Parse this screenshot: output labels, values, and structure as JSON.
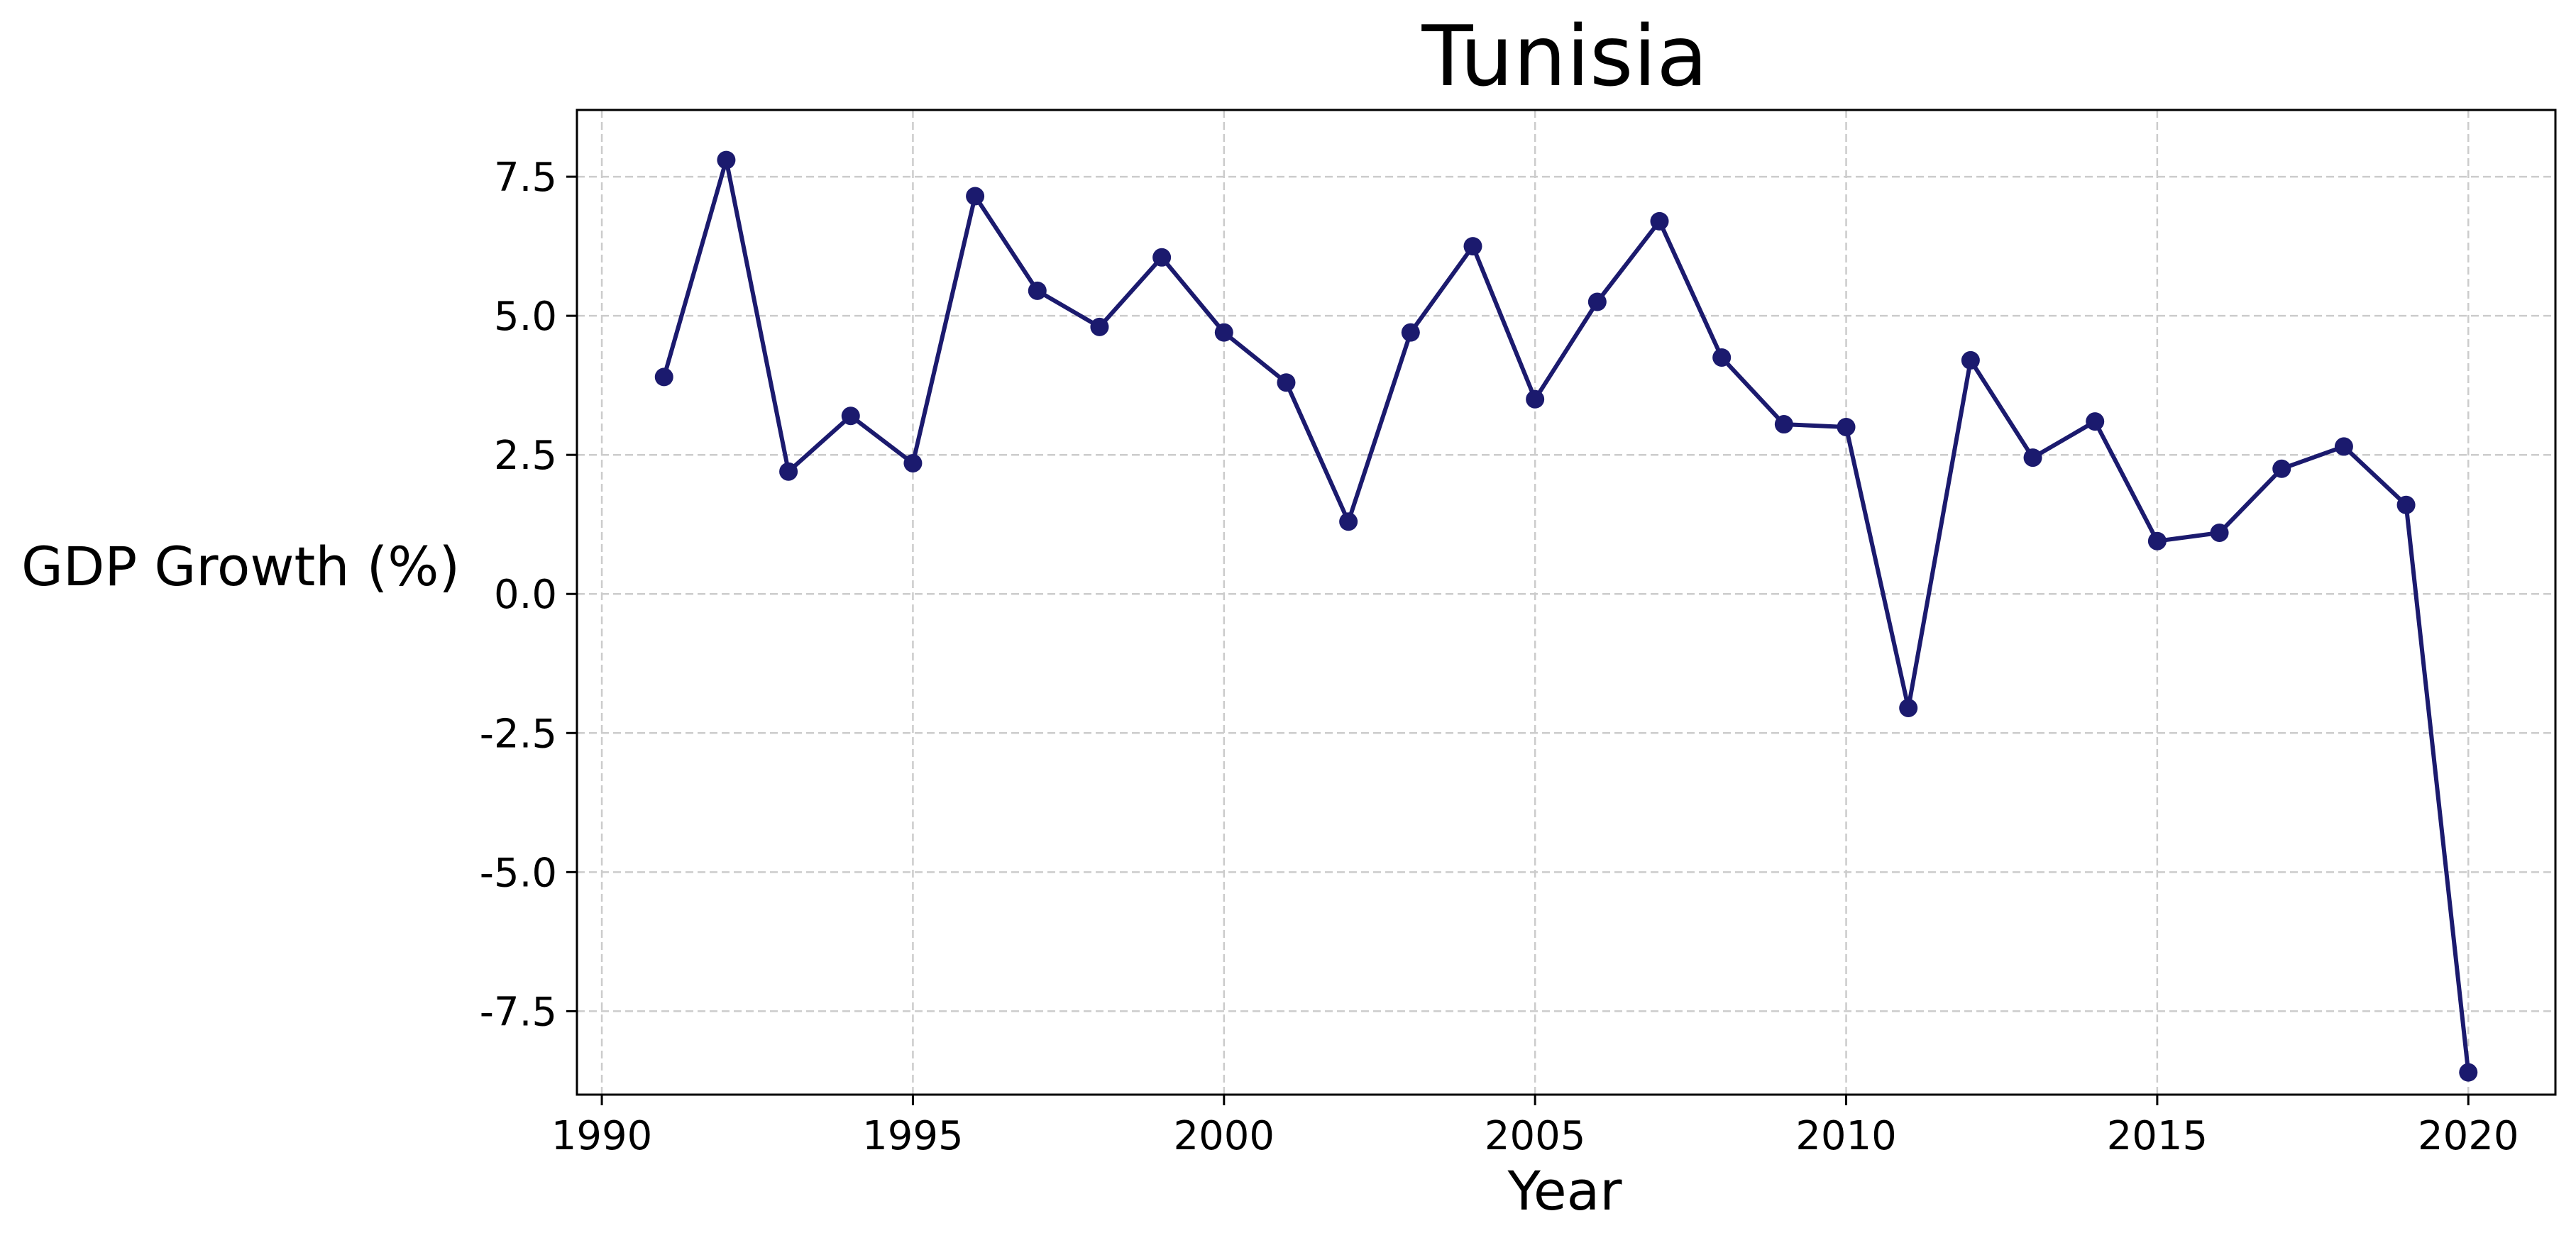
{
  "chart_data": {
    "type": "line",
    "title": "Tunisia",
    "xlabel": "Year",
    "ylabel": "GDP Growth (%)",
    "xlim": [
      1989.6,
      2021.4
    ],
    "ylim": [
      -9.0,
      8.7
    ],
    "xticks": [
      1990,
      1995,
      2000,
      2005,
      2010,
      2015,
      2020
    ],
    "yticks": [
      7.5,
      5.0,
      2.5,
      0.0,
      -2.5,
      -5.0,
      -7.5
    ],
    "ytick_labels": [
      "7.5",
      "5.0",
      "2.5",
      "0.0",
      "-2.5",
      "-5.0",
      "-7.5"
    ],
    "grid": true,
    "line_color": "#1b1a6e",
    "series": [
      {
        "x": [
          1991,
          1992,
          1993,
          1994,
          1995,
          1996,
          1997,
          1998,
          1999,
          2000,
          2001,
          2002,
          2003,
          2004,
          2005,
          2006,
          2007,
          2008,
          2009,
          2010,
          2011,
          2012,
          2013,
          2014,
          2015,
          2016,
          2017,
          2018,
          2019,
          2020
        ],
        "values": [
          3.9,
          7.8,
          2.2,
          3.2,
          2.35,
          7.15,
          5.45,
          4.8,
          6.05,
          4.7,
          3.8,
          1.3,
          4.7,
          6.25,
          3.5,
          5.25,
          6.7,
          4.25,
          3.05,
          3.0,
          -2.05,
          4.2,
          2.45,
          3.1,
          0.95,
          1.1,
          2.25,
          2.65,
          1.6,
          -8.6
        ]
      }
    ]
  }
}
